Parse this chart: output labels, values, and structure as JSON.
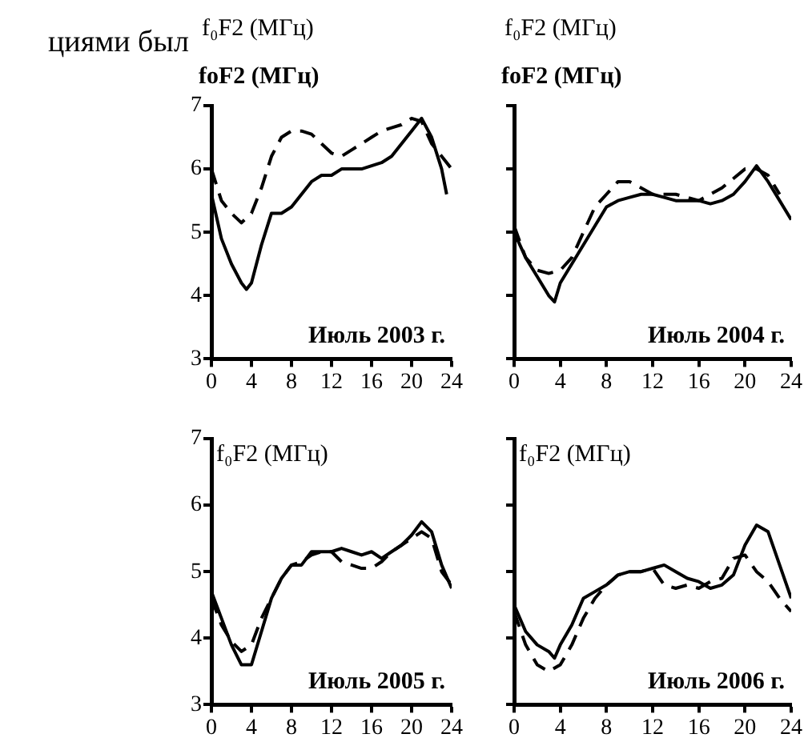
{
  "chart_data": [
    {
      "type": "line",
      "ylabel": "f₀F2 (МГц)",
      "annotations": [
        "циями был",
        "foF2 (МГц)",
        "Июль 2003 г."
      ],
      "x": [
        0,
        1,
        2,
        3,
        3.5,
        4,
        5,
        6,
        7,
        8,
        9,
        10,
        11,
        12,
        13,
        14,
        15,
        16,
        17,
        18,
        19,
        20,
        21,
        22,
        23,
        23.5
      ],
      "xlim": [
        0,
        24
      ],
      "xticks": [
        0,
        4,
        8,
        12,
        16,
        20,
        24
      ],
      "ylim": [
        3,
        7
      ],
      "yticks": [
        3,
        4,
        5,
        6,
        7
      ],
      "grid": false,
      "legend": false,
      "marker": "none",
      "series": [
        {
          "color": "#000000",
          "line_style": "solid",
          "values": [
            5.6,
            4.9,
            4.5,
            4.2,
            4.1,
            4.2,
            4.8,
            5.3,
            5.3,
            5.4,
            5.6,
            5.8,
            5.9,
            5.9,
            6.0,
            6.0,
            6.0,
            6.05,
            6.1,
            6.2,
            6.4,
            6.6,
            6.8,
            6.5,
            6.0,
            5.6
          ]
        },
        {
          "color": "#000000",
          "line_style": "dashed",
          "x": [
            0,
            1,
            2,
            3,
            4,
            5,
            6,
            7,
            8,
            9,
            10,
            11,
            12,
            13,
            14,
            15,
            16,
            17,
            18,
            19,
            20,
            21,
            22,
            23,
            24
          ],
          "values": [
            6.0,
            5.5,
            5.3,
            5.15,
            5.3,
            5.7,
            6.2,
            6.5,
            6.6,
            6.6,
            6.55,
            6.4,
            6.25,
            6.2,
            6.3,
            6.4,
            6.5,
            6.6,
            6.65,
            6.7,
            6.8,
            6.75,
            6.4,
            6.2,
            6.0
          ]
        }
      ]
    },
    {
      "type": "line",
      "ylabel": "f₀F2 (МГц)",
      "annotations": [
        "foF2 (МГц)",
        "Июль 2004 г."
      ],
      "x": [
        0,
        1,
        2,
        3,
        3.5,
        4,
        5,
        6,
        7,
        8,
        9,
        10,
        11,
        12,
        13,
        14,
        15,
        16,
        17,
        18,
        19,
        20,
        21,
        22,
        23,
        24
      ],
      "xlim": [
        0,
        24
      ],
      "xticks": [
        0,
        4,
        8,
        12,
        16,
        20,
        24
      ],
      "ylim": [
        3,
        7
      ],
      "yticks": [
        3,
        4,
        5,
        6,
        7
      ],
      "tick_labels": "x",
      "grid": false,
      "legend": false,
      "marker": "none",
      "series": [
        {
          "color": "#000000",
          "line_style": "solid",
          "values": [
            5.0,
            4.6,
            4.3,
            4.0,
            3.9,
            4.2,
            4.5,
            4.8,
            5.1,
            5.4,
            5.5,
            5.55,
            5.6,
            5.6,
            5.55,
            5.5,
            5.5,
            5.5,
            5.45,
            5.5,
            5.6,
            5.8,
            6.05,
            5.8,
            5.5,
            5.2
          ]
        },
        {
          "color": "#000000",
          "line_style": "dashed",
          "x": [
            0,
            1,
            2,
            3,
            4,
            5,
            6,
            7,
            8,
            9,
            10,
            11,
            12,
            13,
            14,
            15,
            16,
            17,
            18,
            19,
            20,
            21,
            22,
            23
          ],
          "values": [
            5.1,
            4.6,
            4.4,
            4.35,
            4.4,
            4.6,
            5.0,
            5.4,
            5.6,
            5.8,
            5.8,
            5.7,
            5.6,
            5.6,
            5.6,
            5.55,
            5.5,
            5.6,
            5.7,
            5.85,
            6.0,
            6.0,
            5.9,
            5.6
          ]
        }
      ]
    },
    {
      "type": "line",
      "ylabel": "f₀F2 (МГц)",
      "annotations": [
        "Июль 2005 г."
      ],
      "x": [
        0,
        1,
        2,
        3,
        4,
        5,
        6,
        7,
        8,
        9,
        10,
        11,
        12,
        13,
        14,
        15,
        16,
        17,
        18,
        19,
        20,
        21,
        22,
        23,
        24
      ],
      "xlim": [
        0,
        24
      ],
      "xticks": [
        0,
        4,
        8,
        12,
        16,
        20,
        24
      ],
      "ylim": [
        3,
        7
      ],
      "yticks": [
        3,
        4,
        5,
        6,
        7
      ],
      "grid": false,
      "legend": false,
      "marker": "none",
      "series": [
        {
          "color": "#000000",
          "line_style": "solid",
          "values": [
            4.7,
            4.3,
            3.9,
            3.6,
            3.6,
            4.1,
            4.6,
            4.9,
            5.1,
            5.1,
            5.3,
            5.3,
            5.3,
            5.35,
            5.3,
            5.25,
            5.3,
            5.2,
            5.3,
            5.4,
            5.55,
            5.75,
            5.6,
            5.1,
            4.75
          ]
        },
        {
          "color": "#000000",
          "line_style": "dashed",
          "values": [
            4.6,
            4.2,
            3.95,
            3.8,
            3.9,
            4.3,
            4.6,
            4.9,
            5.1,
            5.15,
            5.25,
            5.3,
            5.3,
            5.15,
            5.1,
            5.05,
            5.05,
            5.15,
            5.3,
            5.4,
            5.5,
            5.6,
            5.5,
            5.0,
            4.8
          ]
        }
      ]
    },
    {
      "type": "line",
      "ylabel": "f₀F2 (МГц)",
      "annotations": [
        "Июль 2006 г."
      ],
      "x": [
        0,
        1,
        2,
        3,
        3.5,
        4,
        5,
        6,
        7,
        8,
        9,
        10,
        11,
        12,
        13,
        14,
        15,
        16,
        17,
        18,
        19,
        20,
        21,
        22,
        23,
        24
      ],
      "xlim": [
        0,
        24
      ],
      "xticks": [
        0,
        4,
        8,
        12,
        16,
        20,
        24
      ],
      "ylim": [
        3,
        7
      ],
      "yticks": [
        3,
        4,
        5,
        6,
        7
      ],
      "tick_labels": "x",
      "grid": false,
      "legend": false,
      "marker": "none",
      "series": [
        {
          "color": "#000000",
          "line_style": "solid",
          "values": [
            4.5,
            4.1,
            3.9,
            3.8,
            3.7,
            3.9,
            4.2,
            4.6,
            4.7,
            4.8,
            4.95,
            5.0,
            5.0,
            5.05,
            5.1,
            5.0,
            4.9,
            4.85,
            4.75,
            4.8,
            4.95,
            5.4,
            5.7,
            5.6,
            5.1,
            4.6
          ]
        },
        {
          "color": "#000000",
          "line_style": "dashed",
          "x": [
            0,
            1,
            2,
            3,
            4,
            5,
            6,
            7,
            8,
            9,
            10,
            11,
            12,
            13,
            14,
            15,
            16,
            17,
            18,
            19,
            20,
            21,
            22,
            23,
            24
          ],
          "values": [
            4.4,
            3.9,
            3.6,
            3.5,
            3.6,
            3.9,
            4.3,
            4.6,
            4.8,
            4.95,
            5.0,
            5.0,
            5.05,
            4.8,
            4.75,
            4.8,
            4.75,
            4.85,
            4.9,
            5.2,
            5.25,
            5.0,
            4.85,
            4.6,
            4.4
          ]
        }
      ]
    }
  ]
}
